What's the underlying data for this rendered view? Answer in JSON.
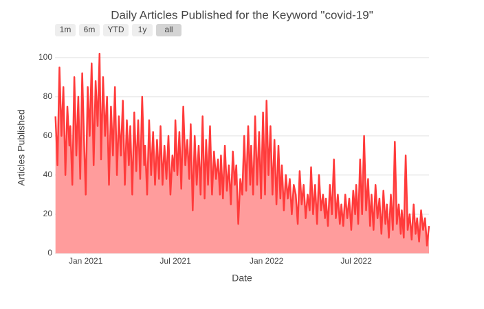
{
  "chart_data": {
    "type": "area",
    "title": "Daily Articles Published for the Keyword \"covid-19\"",
    "x_label": "Date",
    "y_label": "Articles Published",
    "buttons": [
      "1m",
      "6m",
      "YTD",
      "1y",
      "all"
    ],
    "line_color": "#ff3b3b",
    "fill_color": "#ff9c9c",
    "xlim": [
      "2020-10-31",
      "2022-11-25"
    ],
    "xticks": [
      {
        "value": "2021-01-01",
        "label": "Jan 2021"
      },
      {
        "value": "2021-07-01",
        "label": "Jul 2021"
      },
      {
        "value": "2022-01-01",
        "label": "Jan 2022"
      },
      {
        "value": "2022-07-01",
        "label": "Jul 2022"
      }
    ],
    "ylim": [
      0,
      108
    ],
    "yticks": [
      0,
      20,
      40,
      60,
      80,
      100
    ],
    "grid": true,
    "x": [
      "2020-11-01",
      "2020-11-05",
      "2020-11-09",
      "2020-11-13",
      "2020-11-17",
      "2020-11-21",
      "2020-11-25",
      "2020-11-29",
      "2020-12-01",
      "2020-12-05",
      "2020-12-09",
      "2020-12-13",
      "2020-12-17",
      "2020-12-21",
      "2020-12-25",
      "2020-12-29",
      "2021-01-01",
      "2021-01-05",
      "2021-01-09",
      "2021-01-13",
      "2021-01-17",
      "2021-01-21",
      "2021-01-25",
      "2021-01-29",
      "2021-02-01",
      "2021-02-05",
      "2021-02-09",
      "2021-02-13",
      "2021-02-17",
      "2021-02-21",
      "2021-02-25",
      "2021-03-01",
      "2021-03-05",
      "2021-03-09",
      "2021-03-13",
      "2021-03-17",
      "2021-03-21",
      "2021-03-25",
      "2021-03-29",
      "2021-04-01",
      "2021-04-05",
      "2021-04-09",
      "2021-04-13",
      "2021-04-17",
      "2021-04-21",
      "2021-04-25",
      "2021-04-29",
      "2021-05-01",
      "2021-05-05",
      "2021-05-09",
      "2021-05-13",
      "2021-05-17",
      "2021-05-21",
      "2021-05-25",
      "2021-05-29",
      "2021-06-01",
      "2021-06-05",
      "2021-06-09",
      "2021-06-13",
      "2021-06-17",
      "2021-06-21",
      "2021-06-25",
      "2021-06-29",
      "2021-07-01",
      "2021-07-05",
      "2021-07-09",
      "2021-07-13",
      "2021-07-17",
      "2021-07-21",
      "2021-07-25",
      "2021-07-29",
      "2021-08-01",
      "2021-08-05",
      "2021-08-09",
      "2021-08-13",
      "2021-08-17",
      "2021-08-21",
      "2021-08-25",
      "2021-08-29",
      "2021-09-01",
      "2021-09-05",
      "2021-09-09",
      "2021-09-13",
      "2021-09-17",
      "2021-09-21",
      "2021-09-25",
      "2021-09-29",
      "2021-10-01",
      "2021-10-05",
      "2021-10-09",
      "2021-10-13",
      "2021-10-17",
      "2021-10-21",
      "2021-10-25",
      "2021-10-29",
      "2021-11-01",
      "2021-11-05",
      "2021-11-09",
      "2021-11-13",
      "2021-11-17",
      "2021-11-21",
      "2021-11-25",
      "2021-11-29",
      "2021-12-01",
      "2021-12-05",
      "2021-12-09",
      "2021-12-13",
      "2021-12-17",
      "2021-12-21",
      "2021-12-25",
      "2021-12-29",
      "2022-01-01",
      "2022-01-05",
      "2022-01-09",
      "2022-01-13",
      "2022-01-17",
      "2022-01-21",
      "2022-01-25",
      "2022-01-29",
      "2022-02-01",
      "2022-02-05",
      "2022-02-09",
      "2022-02-13",
      "2022-02-17",
      "2022-02-21",
      "2022-02-25",
      "2022-03-01",
      "2022-03-05",
      "2022-03-09",
      "2022-03-13",
      "2022-03-17",
      "2022-03-21",
      "2022-03-25",
      "2022-03-29",
      "2022-04-01",
      "2022-04-05",
      "2022-04-09",
      "2022-04-13",
      "2022-04-17",
      "2022-04-21",
      "2022-04-25",
      "2022-04-29",
      "2022-05-01",
      "2022-05-05",
      "2022-05-09",
      "2022-05-13",
      "2022-05-17",
      "2022-05-21",
      "2022-05-25",
      "2022-05-29",
      "2022-06-01",
      "2022-06-05",
      "2022-06-09",
      "2022-06-13",
      "2022-06-17",
      "2022-06-21",
      "2022-06-25",
      "2022-06-29",
      "2022-07-01",
      "2022-07-05",
      "2022-07-09",
      "2022-07-13",
      "2022-07-17",
      "2022-07-21",
      "2022-07-25",
      "2022-07-29",
      "2022-08-01",
      "2022-08-05",
      "2022-08-09",
      "2022-08-13",
      "2022-08-17",
      "2022-08-21",
      "2022-08-25",
      "2022-08-29",
      "2022-09-01",
      "2022-09-05",
      "2022-09-09",
      "2022-09-13",
      "2022-09-17",
      "2022-09-21",
      "2022-09-25",
      "2022-09-29",
      "2022-10-01",
      "2022-10-05",
      "2022-10-09",
      "2022-10-13",
      "2022-10-17",
      "2022-10-21",
      "2022-10-25",
      "2022-10-29",
      "2022-11-01",
      "2022-11-05",
      "2022-11-09",
      "2022-11-13",
      "2022-11-17",
      "2022-11-21",
      "2022-11-25"
    ],
    "values": [
      70,
      45,
      95,
      60,
      85,
      40,
      75,
      55,
      65,
      35,
      90,
      50,
      80,
      38,
      92,
      55,
      30,
      85,
      60,
      97,
      45,
      88,
      65,
      102,
      48,
      90,
      60,
      80,
      35,
      75,
      50,
      85,
      40,
      70,
      50,
      78,
      35,
      68,
      45,
      65,
      30,
      72,
      42,
      68,
      38,
      80,
      45,
      55,
      30,
      68,
      40,
      62,
      35,
      58,
      38,
      65,
      35,
      55,
      38,
      60,
      30,
      50,
      42,
      68,
      40,
      62,
      33,
      75,
      45,
      58,
      38,
      66,
      22,
      60,
      35,
      55,
      30,
      70,
      28,
      58,
      35,
      65,
      30,
      52,
      38,
      48,
      30,
      50,
      28,
      55,
      32,
      45,
      25,
      52,
      35,
      45,
      15,
      38,
      30,
      60,
      32,
      65,
      35,
      55,
      30,
      70,
      35,
      62,
      28,
      72,
      30,
      78,
      40,
      65,
      30,
      58,
      25,
      55,
      28,
      45,
      22,
      40,
      28,
      38,
      20,
      35,
      30,
      15,
      42,
      25,
      35,
      18,
      30,
      22,
      44,
      20,
      35,
      15,
      40,
      22,
      30,
      18,
      28,
      14,
      35,
      20,
      48,
      18,
      30,
      15,
      25,
      14,
      30,
      18,
      28,
      12,
      32,
      20,
      35,
      15,
      48,
      20,
      60,
      22,
      38,
      14,
      30,
      12,
      35,
      18,
      28,
      10,
      32,
      15,
      25,
      8,
      30,
      12,
      57,
      15,
      25,
      10,
      22,
      8,
      50,
      12,
      20,
      7,
      25,
      10,
      18,
      6,
      22,
      12,
      18,
      4,
      14
    ]
  }
}
